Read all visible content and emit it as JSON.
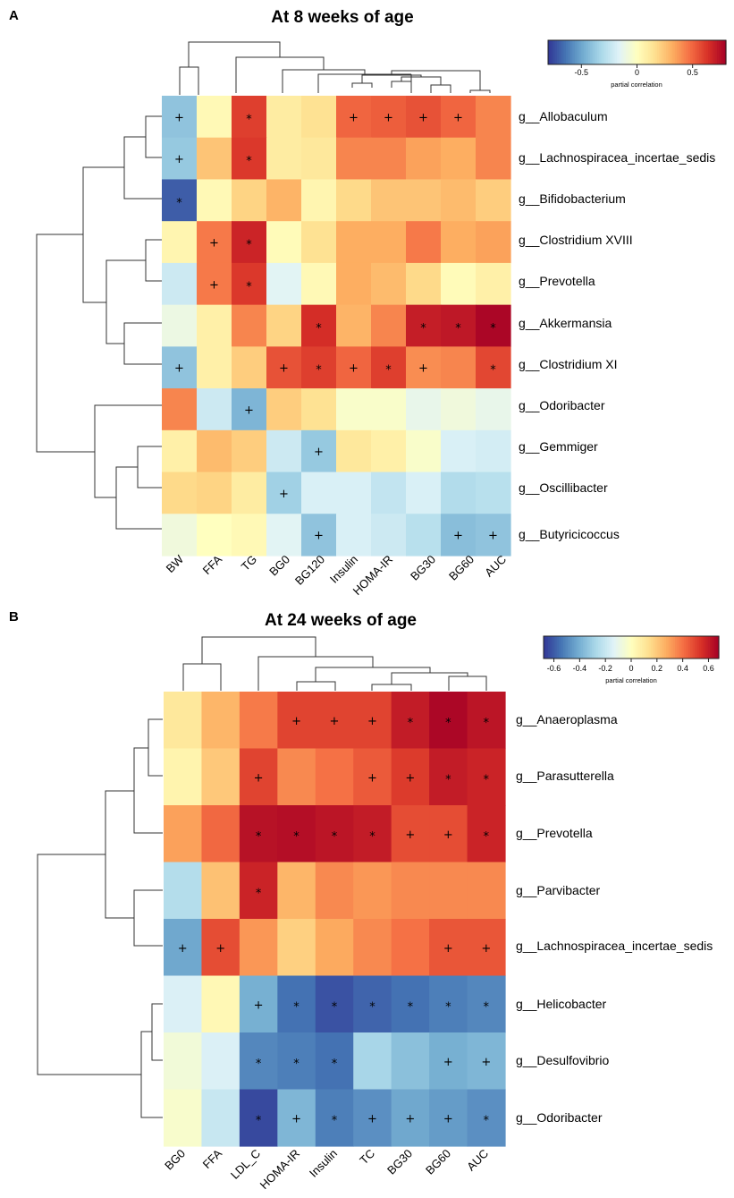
{
  "colors": {
    "scale": [
      "#313695",
      "#4575b4",
      "#74add1",
      "#abd9e9",
      "#e0f3f8",
      "#ffffbf",
      "#fee090",
      "#fdae61",
      "#f46d43",
      "#d73027",
      "#a50026"
    ]
  },
  "chart_data": [
    {
      "panel": "A",
      "type": "heatmap",
      "title": "At 8 weeks of age",
      "legend_title": "partial correlation",
      "legend_ticks": [
        "-0.5",
        "0",
        "0.5"
      ],
      "legend_range": [
        -0.8,
        0.8
      ],
      "columns": [
        "BW",
        "FFA",
        "TG",
        "BG0",
        "BG120",
        "Insulin",
        "HOMA-IR",
        "BG30",
        "BG60",
        "AUC"
      ],
      "rows": [
        "g__Allobaculum",
        "g__Lachnospiracea_incertae_sedis",
        "g__Bifidobacterium",
        "g__Clostridium XVIII",
        "g__Prevotella",
        "g__Akkermansia",
        "g__Clostridium XI",
        "g__Odoribacter",
        "g__Gemmiger",
        "g__Oscillibacter",
        "g__Butyricicoccus"
      ],
      "values": [
        [
          -0.4,
          0.03,
          0.6,
          0.1,
          0.15,
          0.5,
          0.52,
          0.55,
          0.5,
          0.42
        ],
        [
          -0.38,
          0.25,
          0.62,
          0.1,
          0.12,
          0.42,
          0.42,
          0.35,
          0.32,
          0.42
        ],
        [
          -0.7,
          0.03,
          0.2,
          0.3,
          0.05,
          0.18,
          0.25,
          0.25,
          0.28,
          0.22
        ],
        [
          0.05,
          0.45,
          0.68,
          0.02,
          0.15,
          0.32,
          0.32,
          0.45,
          0.32,
          0.35
        ],
        [
          -0.22,
          0.45,
          0.62,
          -0.15,
          0.03,
          0.32,
          0.28,
          0.18,
          0.02,
          0.08
        ],
        [
          -0.1,
          0.08,
          0.42,
          0.2,
          0.65,
          0.3,
          0.42,
          0.7,
          0.72,
          0.78
        ],
        [
          -0.4,
          0.08,
          0.22,
          0.55,
          0.6,
          0.5,
          0.6,
          0.4,
          0.42,
          0.58
        ],
        [
          0.42,
          -0.22,
          -0.45,
          0.22,
          0.15,
          -0.03,
          -0.03,
          -0.12,
          -0.08,
          -0.12
        ],
        [
          0.08,
          0.28,
          0.22,
          -0.22,
          -0.38,
          0.12,
          0.08,
          -0.03,
          -0.18,
          -0.2
        ],
        [
          0.18,
          0.2,
          0.1,
          -0.35,
          -0.18,
          -0.18,
          -0.25,
          -0.18,
          -0.3,
          -0.28
        ],
        [
          -0.08,
          0.0,
          0.03,
          -0.15,
          -0.4,
          -0.18,
          -0.22,
          -0.28,
          -0.42,
          -0.4
        ]
      ],
      "marks": [
        [
          "+",
          "",
          "*",
          "",
          "",
          "+",
          "+",
          "+",
          "+",
          ""
        ],
        [
          "+",
          "",
          "*",
          "",
          "",
          "",
          "",
          "",
          "",
          ""
        ],
        [
          "*",
          "",
          "",
          "",
          "",
          "",
          "",
          "",
          "",
          ""
        ],
        [
          "",
          "+",
          "*",
          "",
          "",
          "",
          "",
          "",
          "",
          ""
        ],
        [
          "",
          "+",
          "*",
          "",
          "",
          "",
          "",
          "",
          "",
          ""
        ],
        [
          "",
          "",
          "",
          "",
          "*",
          "",
          "",
          "*",
          "*",
          "*"
        ],
        [
          "+",
          "",
          "",
          "+",
          "*",
          "+",
          "*",
          "+",
          "",
          "*"
        ],
        [
          "",
          "",
          "+",
          "",
          "",
          "",
          "",
          "",
          "",
          ""
        ],
        [
          "",
          "",
          "",
          "",
          "+",
          "",
          "",
          "",
          "",
          ""
        ],
        [
          "",
          "",
          "",
          "+",
          "",
          "",
          "",
          "",
          "",
          ""
        ],
        [
          "",
          "",
          "",
          "",
          "+",
          "",
          "",
          "",
          "+",
          "+"
        ]
      ]
    },
    {
      "panel": "B",
      "type": "heatmap",
      "title": "At 24 weeks of age",
      "legend_title": "partial correlation",
      "legend_ticks": [
        "-0.6",
        "-0.4",
        "-0.2",
        "0",
        "0.2",
        "0.4",
        "0.6"
      ],
      "legend_range": [
        -0.68,
        0.68
      ],
      "columns": [
        "BG0",
        "FFA",
        "LDL_C",
        "HOMA-IR",
        "Insulin",
        "TC",
        "BG30",
        "BG60",
        "AUC"
      ],
      "rows": [
        "g__Anaeroplasma",
        "g__Parasutterella",
        "g__Prevotella",
        "g__Parvibacter",
        "g__Lachnospiracea_incertae_sedis",
        "g__Helicobacter",
        "g__Desulfovibrio",
        "g__Odoribacter"
      ],
      "values": [
        [
          0.1,
          0.25,
          0.38,
          0.5,
          0.5,
          0.5,
          0.6,
          0.66,
          0.62
        ],
        [
          0.05,
          0.2,
          0.5,
          0.35,
          0.4,
          0.45,
          0.52,
          0.6,
          0.58
        ],
        [
          0.3,
          0.42,
          0.63,
          0.64,
          0.62,
          0.6,
          0.48,
          0.48,
          0.58
        ],
        [
          -0.25,
          0.22,
          0.58,
          0.25,
          0.35,
          0.32,
          0.35,
          0.35,
          0.35
        ],
        [
          -0.42,
          0.48,
          0.32,
          0.18,
          0.28,
          0.35,
          0.4,
          0.46,
          0.46
        ],
        [
          -0.15,
          0.03,
          -0.4,
          -0.55,
          -0.62,
          -0.58,
          -0.55,
          -0.52,
          -0.5
        ],
        [
          -0.06,
          -0.15,
          -0.5,
          -0.52,
          -0.55,
          -0.28,
          -0.35,
          -0.4,
          -0.38
        ],
        [
          -0.03,
          -0.2,
          -0.64,
          -0.38,
          -0.52,
          -0.48,
          -0.42,
          -0.45,
          -0.48
        ]
      ],
      "marks": [
        [
          "",
          "",
          "",
          "+",
          "+",
          "+",
          "*",
          "*",
          "*"
        ],
        [
          "",
          "",
          "+",
          "",
          "",
          "+",
          "+",
          "*",
          "*"
        ],
        [
          "",
          "",
          "*",
          "*",
          "*",
          "*",
          "+",
          "+",
          "*"
        ],
        [
          "",
          "",
          "*",
          "",
          "",
          "",
          "",
          "",
          ""
        ],
        [
          "+",
          "+",
          "",
          "",
          "",
          "",
          "",
          "+",
          "+"
        ],
        [
          "",
          "",
          "+",
          "*",
          "*",
          "*",
          "*",
          "*",
          "*"
        ],
        [
          "",
          "",
          "*",
          "*",
          "*",
          "",
          "",
          "+",
          "+"
        ],
        [
          "",
          "",
          "*",
          "+",
          "*",
          "+",
          "+",
          "+",
          "*"
        ]
      ]
    }
  ]
}
